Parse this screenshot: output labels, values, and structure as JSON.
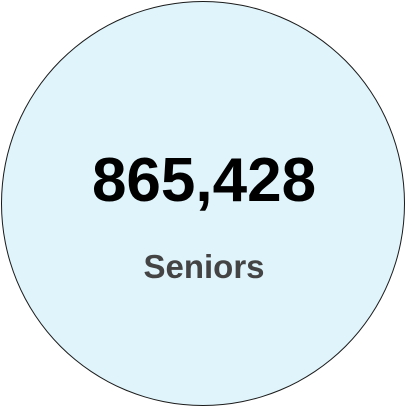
{
  "stat": {
    "value": "865,428",
    "label": "Seniors"
  },
  "colors": {
    "circle_fill": "#dff4fb",
    "circle_border": "#1a1a1a",
    "value_text": "#000000",
    "label_text": "#444444"
  }
}
